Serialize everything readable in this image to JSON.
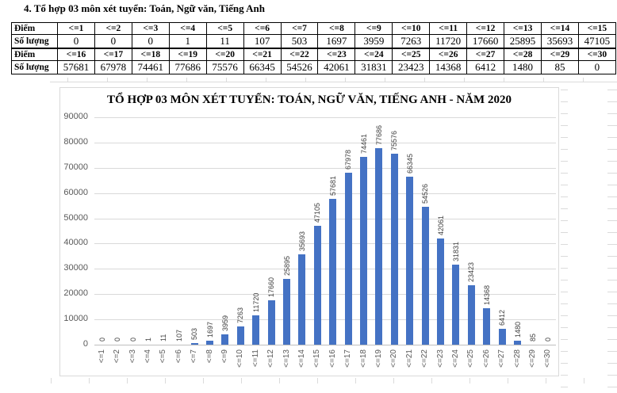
{
  "page": {
    "heading": "4. Tổ hợp 03 môn xét tuyển: Toán, Ngữ văn, Tiếng Anh"
  },
  "table": {
    "row_labels": {
      "score": "Điểm",
      "count": "Số lượng"
    },
    "group1": {
      "scores": [
        "<=1",
        "<=2",
        "<=3",
        "<=4",
        "<=5",
        "<=6",
        "<=7",
        "<=8",
        "<=9",
        "<=10",
        "<=11",
        "<=12",
        "<=13",
        "<=14",
        "<=15"
      ],
      "counts": [
        "0",
        "0",
        "0",
        "1",
        "11",
        "107",
        "503",
        "1697",
        "3959",
        "7263",
        "11720",
        "17660",
        "25895",
        "35693",
        "47105"
      ]
    },
    "group2": {
      "scores": [
        "<=16",
        "<=17",
        "<=18",
        "<=19",
        "<=20",
        "<=21",
        "<=22",
        "<=23",
        "<=24",
        "<=25",
        "<=26",
        "<=27",
        "<=28",
        "<=29",
        "<=30"
      ],
      "counts": [
        "57681",
        "67978",
        "74461",
        "77686",
        "75576",
        "66345",
        "54526",
        "42061",
        "31831",
        "23423",
        "14368",
        "6412",
        "1480",
        "85",
        "0"
      ]
    }
  },
  "chart_data": {
    "type": "bar",
    "title": "TỔ HỢP 03 MÔN XÉT TUYỂN: TOÁN, NGỮ VĂN, TIẾNG ANH - NĂM 2020",
    "categories": [
      "<=1",
      "<=2",
      "<=3",
      "<=4",
      "<=5",
      "<=6",
      "<=7",
      "<=8",
      "<=9",
      "<=10",
      "<=11",
      "<=12",
      "<=13",
      "<=14",
      "<=15",
      "<=16",
      "<=17",
      "<=18",
      "<=19",
      "<=20",
      "<=21",
      "<=22",
      "<=23",
      "<=24",
      "<=25",
      "<=26",
      "<=27",
      "<=28",
      "<=29",
      "<=30"
    ],
    "values": [
      0,
      0,
      0,
      1,
      11,
      107,
      503,
      1697,
      3959,
      7263,
      11720,
      17660,
      25895,
      35693,
      47105,
      57681,
      67978,
      74461,
      77686,
      75576,
      66345,
      54526,
      42061,
      31831,
      23423,
      14368,
      6412,
      1480,
      85,
      0
    ],
    "xlabel": "",
    "ylabel": "",
    "ylim": [
      0,
      90000
    ],
    "yticks": [
      0,
      10000,
      20000,
      30000,
      40000,
      50000,
      60000,
      70000,
      80000,
      90000
    ],
    "grid": true,
    "legend": false,
    "data_labels": true,
    "bar_color": "#4472C4",
    "value_label_color": "#404040",
    "axis_label_color": "#595959",
    "gridline_color": "#D9D9D9",
    "axis_line_color": "#BFBFBF"
  }
}
